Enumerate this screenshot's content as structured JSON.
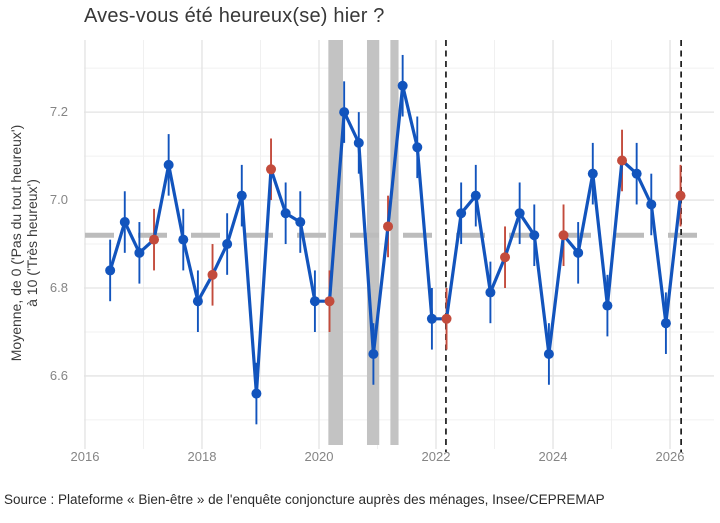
{
  "chart_data": {
    "type": "line",
    "title": "Aves-vous été heureux(se) hier ?",
    "ylabel_line1": "Moyenne, de 0 ('Pas du tout heureux')",
    "ylabel_line2": "à 10 ('Très heureux')",
    "source": "Source : Plateforme « Bien-être » de l'enquête conjoncture auprès des ménages, Insee/CEPREMAP",
    "x_tick_labels": [
      "2016",
      "2018",
      "2020",
      "2022",
      "2024",
      "2026"
    ],
    "x_minor_ticks": [
      2017,
      2019,
      2021,
      2023,
      2025
    ],
    "y_tick_labels": [
      "7.2",
      "7.0",
      "6.8",
      "6.6"
    ],
    "y_minor_ticks": [
      7.3,
      7.1,
      6.9,
      6.7,
      6.5
    ],
    "xlim": [
      2015.983,
      2026.752
    ],
    "ylim": [
      6.443,
      7.364
    ],
    "grid": true,
    "legend": false,
    "mean_line_value": 6.92,
    "event_line_years": [
      2022.17,
      2026.19
    ],
    "lockdown_bands": [
      [
        2020.16,
        2020.41
      ],
      [
        2020.82,
        2021.03
      ],
      [
        2021.22,
        2021.36
      ]
    ],
    "series": [
      {
        "name": "Bonheur déclaré (moyenne trimestrielle)",
        "points": [
          {
            "t": 2016.43,
            "v": 6.84,
            "ci": 0.07,
            "hl": 0
          },
          {
            "t": 2016.68,
            "v": 6.95,
            "ci": 0.07,
            "hl": 0
          },
          {
            "t": 2016.93,
            "v": 6.88,
            "ci": 0.07,
            "hl": 0
          },
          {
            "t": 2017.18,
            "v": 6.91,
            "ci": 0.07,
            "hl": 1
          },
          {
            "t": 2017.43,
            "v": 7.08,
            "ci": 0.07,
            "hl": 0
          },
          {
            "t": 2017.68,
            "v": 6.91,
            "ci": 0.07,
            "hl": 0
          },
          {
            "t": 2017.93,
            "v": 6.77,
            "ci": 0.07,
            "hl": 0
          },
          {
            "t": 2018.18,
            "v": 6.83,
            "ci": 0.07,
            "hl": 1
          },
          {
            "t": 2018.43,
            "v": 6.9,
            "ci": 0.07,
            "hl": 0
          },
          {
            "t": 2018.68,
            "v": 7.01,
            "ci": 0.07,
            "hl": 0
          },
          {
            "t": 2018.93,
            "v": 6.56,
            "ci": 0.07,
            "hl": 0
          },
          {
            "t": 2019.18,
            "v": 7.07,
            "ci": 0.07,
            "hl": 1
          },
          {
            "t": 2019.43,
            "v": 6.97,
            "ci": 0.07,
            "hl": 0
          },
          {
            "t": 2019.68,
            "v": 6.95,
            "ci": 0.07,
            "hl": 0
          },
          {
            "t": 2019.93,
            "v": 6.77,
            "ci": 0.07,
            "hl": 0
          },
          {
            "t": 2020.18,
            "v": 6.77,
            "ci": 0.07,
            "hl": 1
          },
          {
            "t": 2020.43,
            "v": 7.2,
            "ci": 0.07,
            "hl": 0
          },
          {
            "t": 2020.68,
            "v": 7.13,
            "ci": 0.07,
            "hl": 0
          },
          {
            "t": 2020.93,
            "v": 6.65,
            "ci": 0.07,
            "hl": 0
          },
          {
            "t": 2021.18,
            "v": 6.94,
            "ci": 0.07,
            "hl": 1
          },
          {
            "t": 2021.43,
            "v": 7.26,
            "ci": 0.07,
            "hl": 0
          },
          {
            "t": 2021.68,
            "v": 7.12,
            "ci": 0.07,
            "hl": 0
          },
          {
            "t": 2021.93,
            "v": 6.73,
            "ci": 0.07,
            "hl": 0
          },
          {
            "t": 2022.18,
            "v": 6.73,
            "ci": 0.07,
            "hl": 1
          },
          {
            "t": 2022.43,
            "v": 6.97,
            "ci": 0.07,
            "hl": 0
          },
          {
            "t": 2022.68,
            "v": 7.01,
            "ci": 0.07,
            "hl": 0
          },
          {
            "t": 2022.93,
            "v": 6.79,
            "ci": 0.07,
            "hl": 0
          },
          {
            "t": 2023.18,
            "v": 6.87,
            "ci": 0.07,
            "hl": 1
          },
          {
            "t": 2023.43,
            "v": 6.97,
            "ci": 0.07,
            "hl": 0
          },
          {
            "t": 2023.68,
            "v": 6.92,
            "ci": 0.07,
            "hl": 0
          },
          {
            "t": 2023.93,
            "v": 6.65,
            "ci": 0.07,
            "hl": 0
          },
          {
            "t": 2024.18,
            "v": 6.92,
            "ci": 0.07,
            "hl": 1
          },
          {
            "t": 2024.43,
            "v": 6.88,
            "ci": 0.07,
            "hl": 0
          },
          {
            "t": 2024.68,
            "v": 7.06,
            "ci": 0.07,
            "hl": 0
          },
          {
            "t": 2024.93,
            "v": 6.76,
            "ci": 0.07,
            "hl": 0
          },
          {
            "t": 2025.18,
            "v": 7.09,
            "ci": 0.07,
            "hl": 1
          },
          {
            "t": 2025.43,
            "v": 7.06,
            "ci": 0.07,
            "hl": 0
          },
          {
            "t": 2025.68,
            "v": 6.99,
            "ci": 0.07,
            "hl": 0
          },
          {
            "t": 2025.93,
            "v": 6.72,
            "ci": 0.07,
            "hl": 0
          },
          {
            "t": 2026.18,
            "v": 7.01,
            "ci": 0.07,
            "hl": 1
          }
        ]
      }
    ]
  },
  "colors": {
    "line": "#1254bd",
    "highlight": "#c34b3c",
    "mean_line": "#bcbcbc",
    "band": "#c3c3c3",
    "event_line": "#1b1b1b",
    "grid_major": "#e3e3e3",
    "grid_minor": "#f0f0f0",
    "tick_text": "#858585",
    "title_text": "#383838"
  }
}
